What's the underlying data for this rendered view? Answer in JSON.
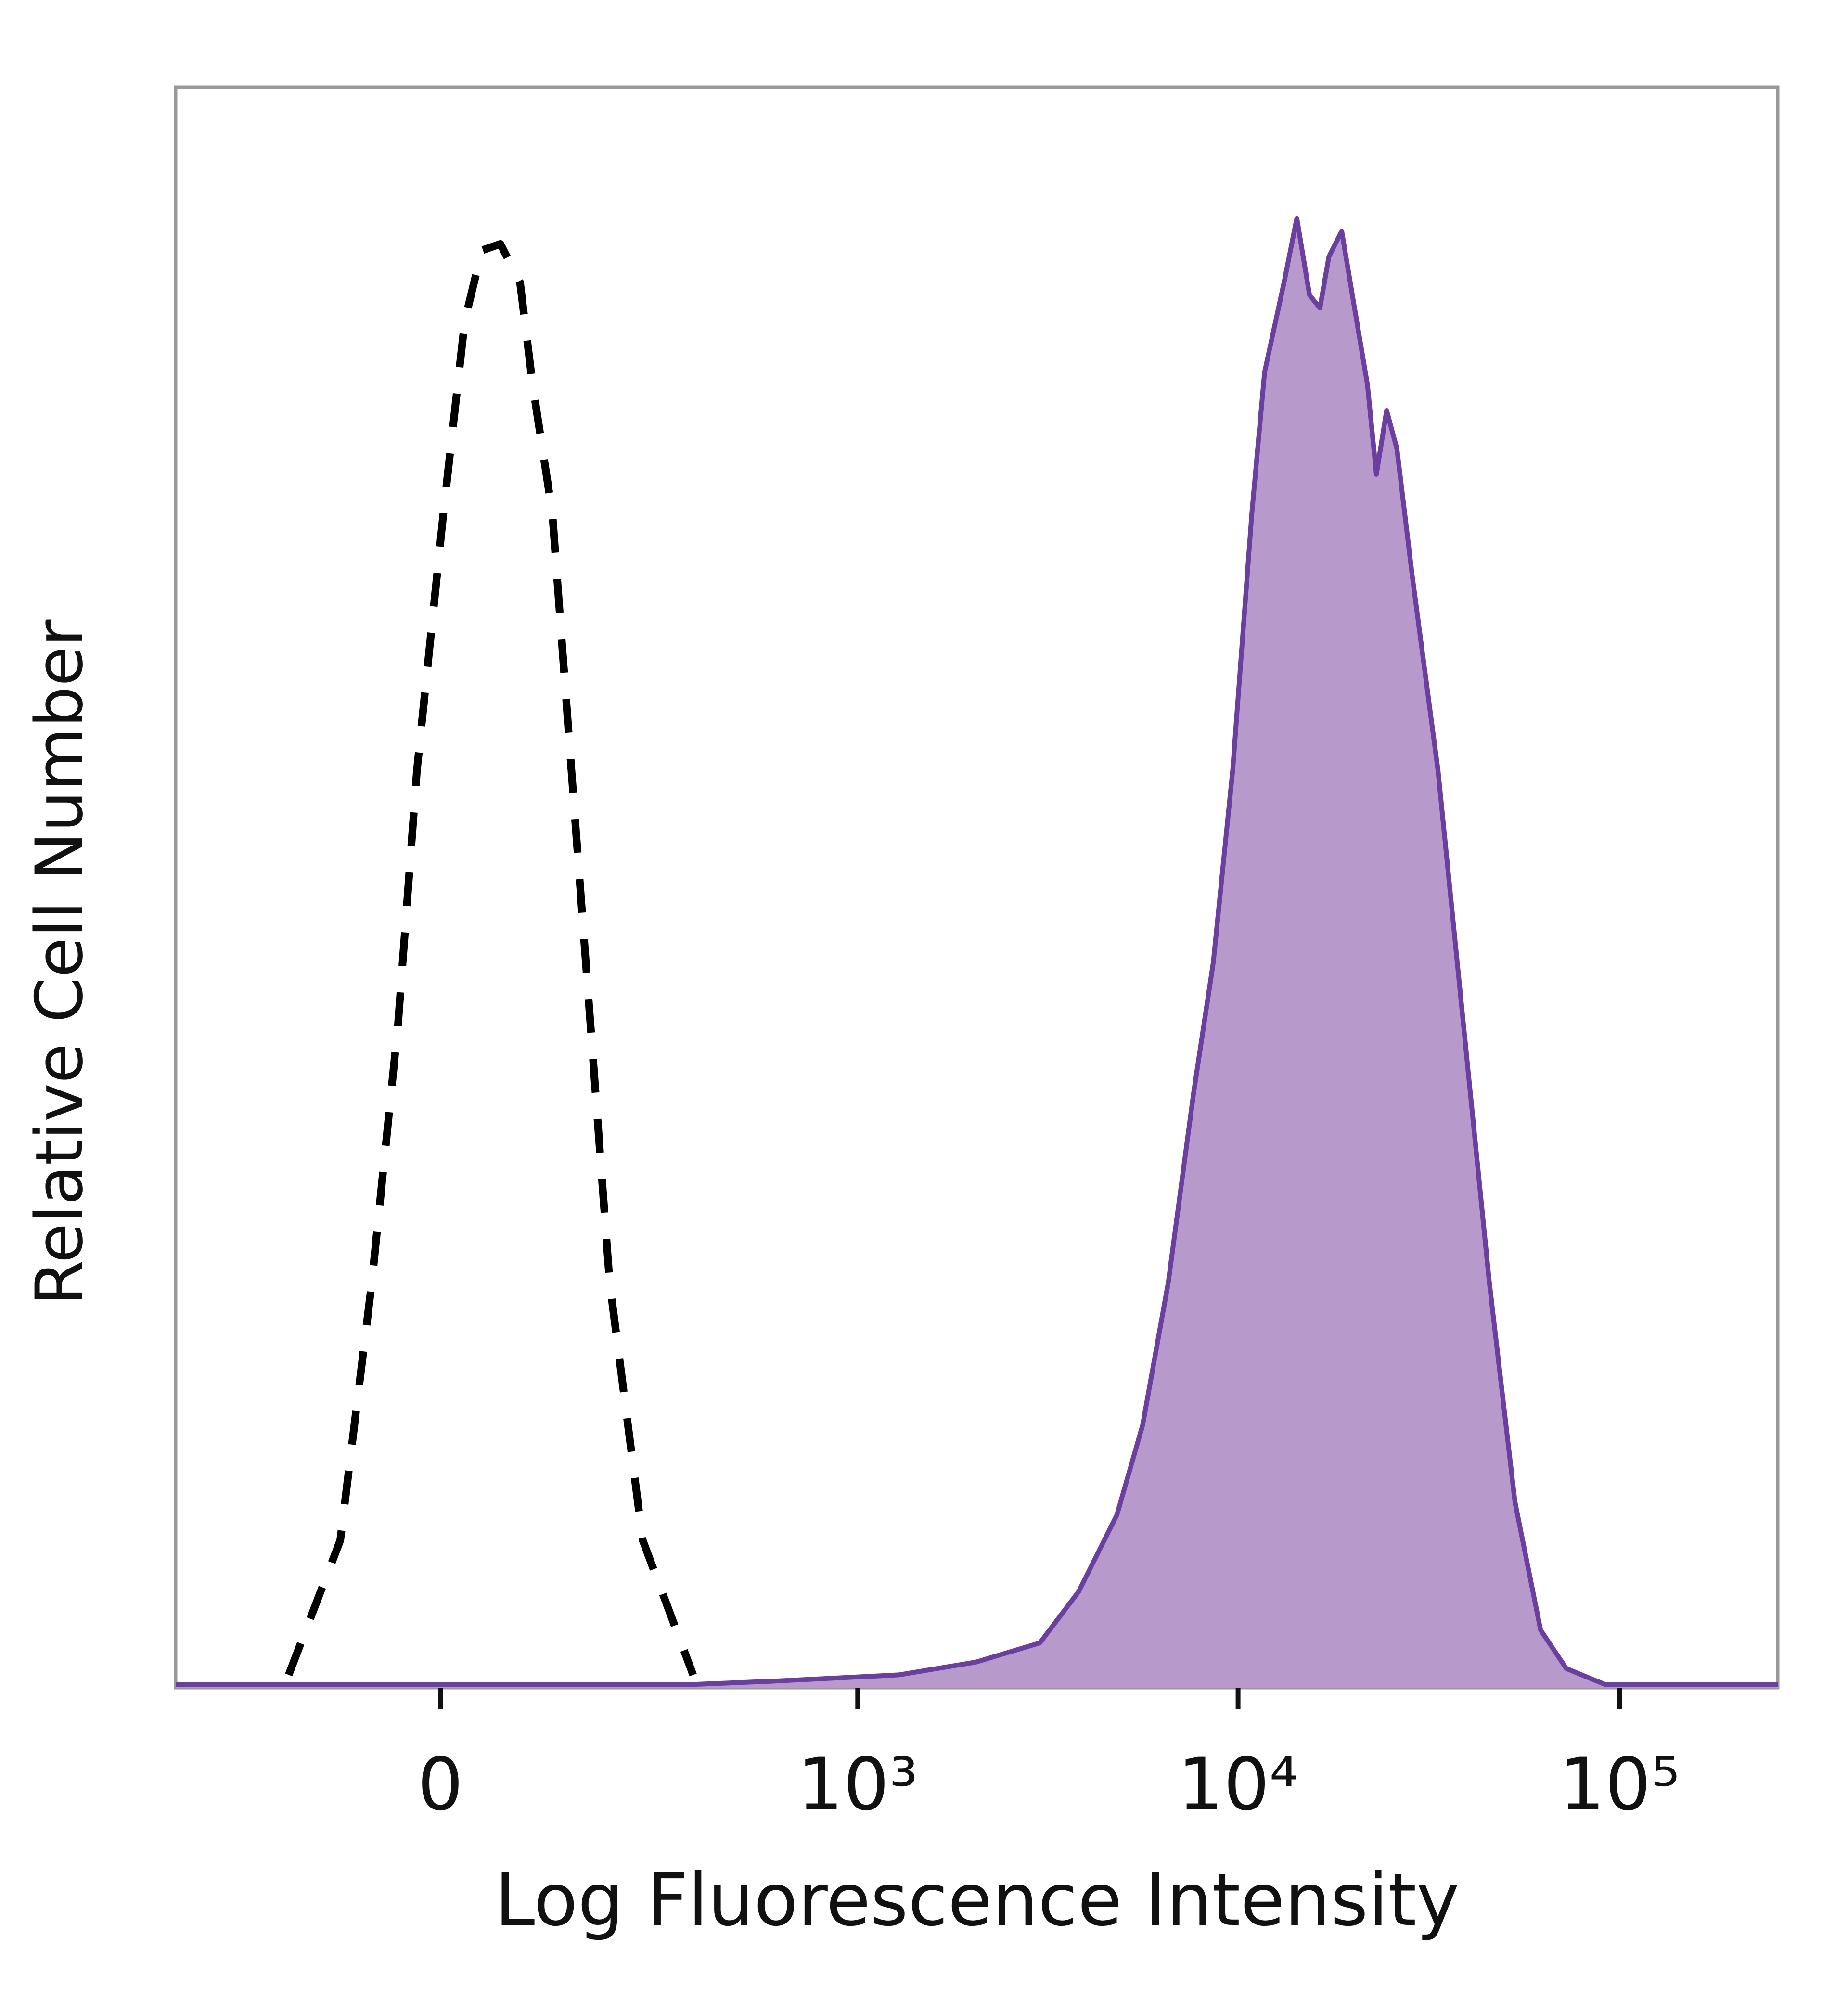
{
  "chart_data": {
    "type": "histogram-overlay",
    "xlabel": "Log Fluorescence Intensity",
    "ylabel": "Relative Cell Number",
    "xscale": "biexponential",
    "xlim": [
      -384,
      260000
    ],
    "ylim": [
      0,
      100
    ],
    "xticks": [
      0,
      {
        "value": 1000,
        "label": "10³"
      },
      {
        "value": 10000,
        "label": "10⁴"
      },
      {
        "value": 100000,
        "label": "10⁵"
      }
    ],
    "series": [
      {
        "color": "#000000",
        "style": "dashed",
        "filled": false,
        "x": [
          -170,
          -104,
          -69,
          -42,
          -23,
          3,
          24,
          41,
          60,
          81,
          95,
          118,
          142,
          168,
          196,
          251,
          355
        ],
        "values": [
          0.8,
          9.2,
          25.3,
          41.3,
          57.3,
          73.4,
          85.4,
          89.8,
          90.2,
          87.8,
          81.4,
          73.4,
          57.3,
          41.3,
          25.3,
          9.2,
          0.8
        ]
      },
      {
        "color": "#6a3fa0",
        "fill": "#b899cb",
        "style": "solid",
        "filled": true,
        "x": [
          -384,
          -55,
          355,
          583,
          1285,
          2051,
          3021,
          3818,
          4812,
          5620,
          6560,
          7660,
          8610,
          9680,
          10870,
          11740,
          13200,
          14260,
          15400,
          16390,
          17300,
          18700,
          20200,
          21840,
          23050,
          24520,
          26090,
          28640,
          33440,
          39040,
          45590,
          53220,
          62130,
          72540,
          91610,
          260000
        ],
        "values": [
          0.2,
          0.2,
          0.2,
          0.4,
          0.8,
          1.6,
          2.8,
          6.0,
          10.8,
          16.4,
          25.3,
          37.3,
          45.3,
          57.3,
          73.4,
          82.2,
          87.8,
          91.8,
          87.0,
          86.2,
          89.4,
          91.0,
          86.2,
          81.4,
          75.8,
          79.8,
          77.4,
          69.4,
          57.3,
          41.3,
          25.3,
          11.6,
          3.6,
          1.2,
          0.2,
          0.2
        ]
      }
    ]
  }
}
